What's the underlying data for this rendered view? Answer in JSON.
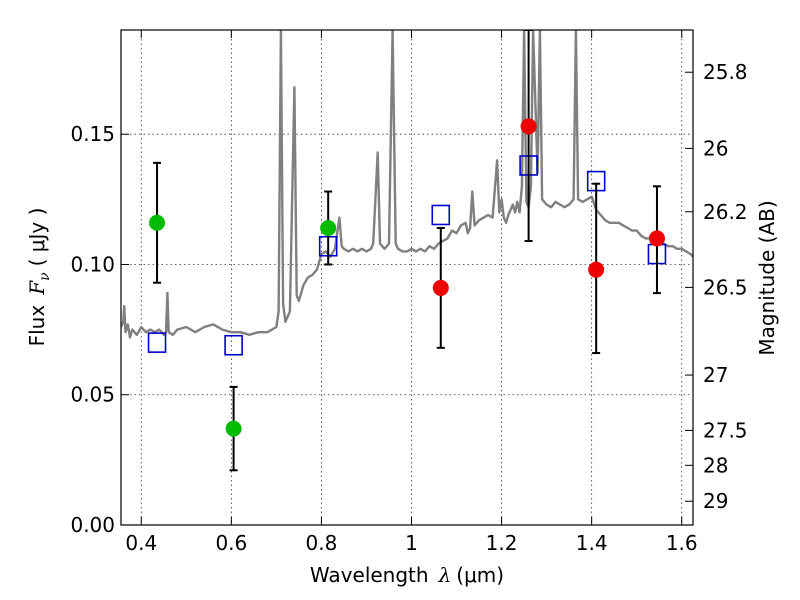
{
  "chart_data": {
    "type": "scatter",
    "xlabel_prefix": "Wavelength",
    "xlabel_symbol": "λ",
    "xlabel_unit": "(μm)",
    "ylabel_prefix": "Flux",
    "ylabel_symbol": "F",
    "ylabel_sub": "ν",
    "ylabel_unit": "( μJy )",
    "y2label": "Magnitude (AB)",
    "xlim": [
      0.355,
      1.625
    ],
    "ylim": [
      0.0,
      0.19
    ],
    "grid": true,
    "x_ticks": [
      {
        "value": 0.4,
        "label": "0.4"
      },
      {
        "value": 0.6,
        "label": "0.6"
      },
      {
        "value": 0.8,
        "label": "0.8"
      },
      {
        "value": 1.0,
        "label": "1"
      },
      {
        "value": 1.2,
        "label": "1.2"
      },
      {
        "value": 1.4,
        "label": "1.4"
      },
      {
        "value": 1.6,
        "label": "1.6"
      }
    ],
    "y_ticks": [
      {
        "value": 0.0,
        "label": "0.00"
      },
      {
        "value": 0.05,
        "label": "0.05"
      },
      {
        "value": 0.1,
        "label": "0.10"
      },
      {
        "value": 0.15,
        "label": "0.15"
      }
    ],
    "magnitude_ticks": [
      {
        "value": 25.8,
        "label": "25.8"
      },
      {
        "value": 26.0,
        "label": "26"
      },
      {
        "value": 26.2,
        "label": "26.2"
      },
      {
        "value": 26.5,
        "label": "26.5"
      },
      {
        "value": 27.0,
        "label": "27"
      },
      {
        "value": 27.5,
        "label": "27.5"
      },
      {
        "value": 28.0,
        "label": "28"
      },
      {
        "value": 29.0,
        "label": "29"
      }
    ],
    "spectrum": {
      "color": "#808080",
      "points": [
        [
          0.355,
          0.076
        ],
        [
          0.36,
          0.078
        ],
        [
          0.362,
          0.084
        ],
        [
          0.365,
          0.074
        ],
        [
          0.37,
          0.077
        ],
        [
          0.375,
          0.072
        ],
        [
          0.38,
          0.075
        ],
        [
          0.39,
          0.073
        ],
        [
          0.4,
          0.076
        ],
        [
          0.41,
          0.074
        ],
        [
          0.42,
          0.075
        ],
        [
          0.43,
          0.074
        ],
        [
          0.44,
          0.075
        ],
        [
          0.45,
          0.073
        ],
        [
          0.455,
          0.074
        ],
        [
          0.458,
          0.089
        ],
        [
          0.461,
          0.074
        ],
        [
          0.47,
          0.073
        ],
        [
          0.48,
          0.075
        ],
        [
          0.5,
          0.076
        ],
        [
          0.52,
          0.074
        ],
        [
          0.54,
          0.076
        ],
        [
          0.56,
          0.077
        ],
        [
          0.58,
          0.075
        ],
        [
          0.6,
          0.074
        ],
        [
          0.62,
          0.074
        ],
        [
          0.64,
          0.073
        ],
        [
          0.66,
          0.074
        ],
        [
          0.68,
          0.074
        ],
        [
          0.69,
          0.075
        ],
        [
          0.7,
          0.076
        ],
        [
          0.705,
          0.082
        ],
        [
          0.71,
          0.19
        ],
        [
          0.715,
          0.085
        ],
        [
          0.72,
          0.078
        ],
        [
          0.73,
          0.082
        ],
        [
          0.74,
          0.168
        ],
        [
          0.745,
          0.088
        ],
        [
          0.75,
          0.086
        ],
        [
          0.76,
          0.092
        ],
        [
          0.77,
          0.095
        ],
        [
          0.78,
          0.096
        ],
        [
          0.79,
          0.098
        ],
        [
          0.8,
          0.104
        ],
        [
          0.81,
          0.105
        ],
        [
          0.82,
          0.103
        ],
        [
          0.83,
          0.106
        ],
        [
          0.84,
          0.118
        ],
        [
          0.845,
          0.107
        ],
        [
          0.85,
          0.106
        ],
        [
          0.86,
          0.105
        ],
        [
          0.87,
          0.106
        ],
        [
          0.88,
          0.105
        ],
        [
          0.89,
          0.106
        ],
        [
          0.9,
          0.105
        ],
        [
          0.91,
          0.106
        ],
        [
          0.915,
          0.108
        ],
        [
          0.925,
          0.143
        ],
        [
          0.93,
          0.108
        ],
        [
          0.94,
          0.106
        ],
        [
          0.95,
          0.108
        ],
        [
          0.958,
          0.19
        ],
        [
          0.965,
          0.108
        ],
        [
          0.97,
          0.106
        ],
        [
          0.98,
          0.105
        ],
        [
          0.99,
          0.105
        ],
        [
          1.0,
          0.106
        ],
        [
          1.01,
          0.105
        ],
        [
          1.02,
          0.106
        ],
        [
          1.03,
          0.105
        ],
        [
          1.04,
          0.107
        ],
        [
          1.05,
          0.106
        ],
        [
          1.06,
          0.108
        ],
        [
          1.07,
          0.109
        ],
        [
          1.08,
          0.11
        ],
        [
          1.09,
          0.113
        ],
        [
          1.1,
          0.112
        ],
        [
          1.11,
          0.115
        ],
        [
          1.12,
          0.116
        ],
        [
          1.125,
          0.112
        ],
        [
          1.13,
          0.114
        ],
        [
          1.135,
          0.128
        ],
        [
          1.14,
          0.115
        ],
        [
          1.15,
          0.117
        ],
        [
          1.16,
          0.118
        ],
        [
          1.17,
          0.119
        ],
        [
          1.18,
          0.118
        ],
        [
          1.19,
          0.14
        ],
        [
          1.195,
          0.12
        ],
        [
          1.2,
          0.125
        ],
        [
          1.205,
          0.118
        ],
        [
          1.21,
          0.116
        ],
        [
          1.215,
          0.119
        ],
        [
          1.22,
          0.121
        ],
        [
          1.225,
          0.123
        ],
        [
          1.23,
          0.12
        ],
        [
          1.235,
          0.124
        ],
        [
          1.24,
          0.12
        ],
        [
          1.245,
          0.13
        ],
        [
          1.25,
          0.19
        ],
        [
          1.255,
          0.124
        ],
        [
          1.26,
          0.122
        ],
        [
          1.265,
          0.13
        ],
        [
          1.27,
          0.19
        ],
        [
          1.28,
          0.135
        ],
        [
          1.285,
          0.19
        ],
        [
          1.29,
          0.125
        ],
        [
          1.3,
          0.123
        ],
        [
          1.31,
          0.122
        ],
        [
          1.32,
          0.124
        ],
        [
          1.33,
          0.123
        ],
        [
          1.34,
          0.122
        ],
        [
          1.35,
          0.123
        ],
        [
          1.36,
          0.125
        ],
        [
          1.365,
          0.19
        ],
        [
          1.37,
          0.125
        ],
        [
          1.38,
          0.124
        ],
        [
          1.39,
          0.125
        ],
        [
          1.4,
          0.126
        ],
        [
          1.41,
          0.121
        ],
        [
          1.42,
          0.119
        ],
        [
          1.43,
          0.117
        ],
        [
          1.44,
          0.116
        ],
        [
          1.45,
          0.116
        ],
        [
          1.46,
          0.116
        ],
        [
          1.47,
          0.115
        ],
        [
          1.48,
          0.114
        ],
        [
          1.49,
          0.113
        ],
        [
          1.5,
          0.113
        ],
        [
          1.51,
          0.111
        ],
        [
          1.52,
          0.11
        ],
        [
          1.53,
          0.11
        ],
        [
          1.54,
          0.109
        ],
        [
          1.55,
          0.11
        ],
        [
          1.56,
          0.108
        ],
        [
          1.57,
          0.107
        ],
        [
          1.58,
          0.107
        ],
        [
          1.59,
          0.106
        ],
        [
          1.6,
          0.106
        ],
        [
          1.61,
          0.105
        ],
        [
          1.62,
          0.104
        ],
        [
          1.625,
          0.103
        ]
      ]
    },
    "series": [
      {
        "marker": "open-square",
        "color": "#0000cc",
        "points": [
          [
            0.435,
            0.07
          ],
          [
            0.605,
            0.069
          ],
          [
            0.815,
            0.107
          ],
          [
            1.065,
            0.119
          ],
          [
            1.26,
            0.138
          ],
          [
            1.41,
            0.132
          ],
          [
            1.545,
            0.104
          ]
        ]
      },
      {
        "marker": "filled-circle",
        "color": "#00bb00",
        "points": [
          {
            "x": 0.435,
            "y": 0.116,
            "err_low": 0.093,
            "err_high": 0.139
          },
          {
            "x": 0.605,
            "y": 0.037,
            "err_low": 0.021,
            "err_high": 0.053
          },
          {
            "x": 0.815,
            "y": 0.114,
            "err_low": 0.1,
            "err_high": 0.128
          }
        ]
      },
      {
        "marker": "filled-circle",
        "color": "#ee0000",
        "points": [
          {
            "x": 1.065,
            "y": 0.091,
            "err_low": 0.068,
            "err_high": 0.114
          },
          {
            "x": 1.26,
            "y": 0.153,
            "err_low": 0.109,
            "err_high": 0.19
          },
          {
            "x": 1.41,
            "y": 0.098,
            "err_low": 0.066,
            "err_high": 0.131
          },
          {
            "x": 1.545,
            "y": 0.11,
            "err_low": 0.089,
            "err_high": 0.13
          }
        ]
      }
    ]
  }
}
